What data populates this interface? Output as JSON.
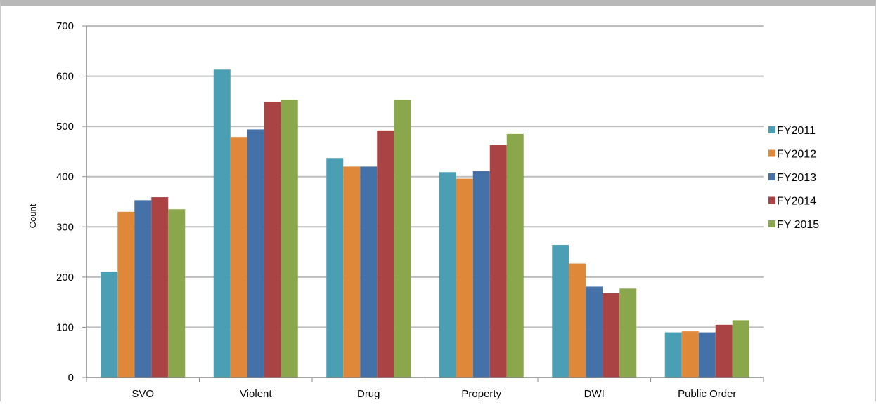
{
  "chart_data": {
    "type": "bar",
    "title": "",
    "xlabel": "",
    "ylabel": "Count",
    "ylim": [
      0,
      700
    ],
    "yticks": [
      0,
      100,
      200,
      300,
      400,
      500,
      600,
      700
    ],
    "grid": true,
    "legend_position": "right",
    "categories": [
      "SVO",
      "Violent",
      "Drug",
      "Property",
      "DWI",
      "Public Order"
    ],
    "series": [
      {
        "name": "FY2011",
        "color": "#4a9fb5",
        "values": [
          211,
          613,
          437,
          409,
          264,
          90
        ]
      },
      {
        "name": "FY2012",
        "color": "#e0883a",
        "values": [
          330,
          479,
          420,
          396,
          227,
          92
        ]
      },
      {
        "name": "FY2013",
        "color": "#4472a8",
        "values": [
          353,
          494,
          420,
          411,
          181,
          90
        ]
      },
      {
        "name": "FY2014",
        "color": "#aa4343",
        "values": [
          359,
          549,
          492,
          463,
          168,
          105
        ]
      },
      {
        "name": "FY 2015",
        "color": "#8aa84b",
        "values": [
          335,
          553,
          553,
          485,
          177,
          114
        ]
      }
    ],
    "gridline_color": "#bdbdbd",
    "axis_color": "#888888"
  }
}
